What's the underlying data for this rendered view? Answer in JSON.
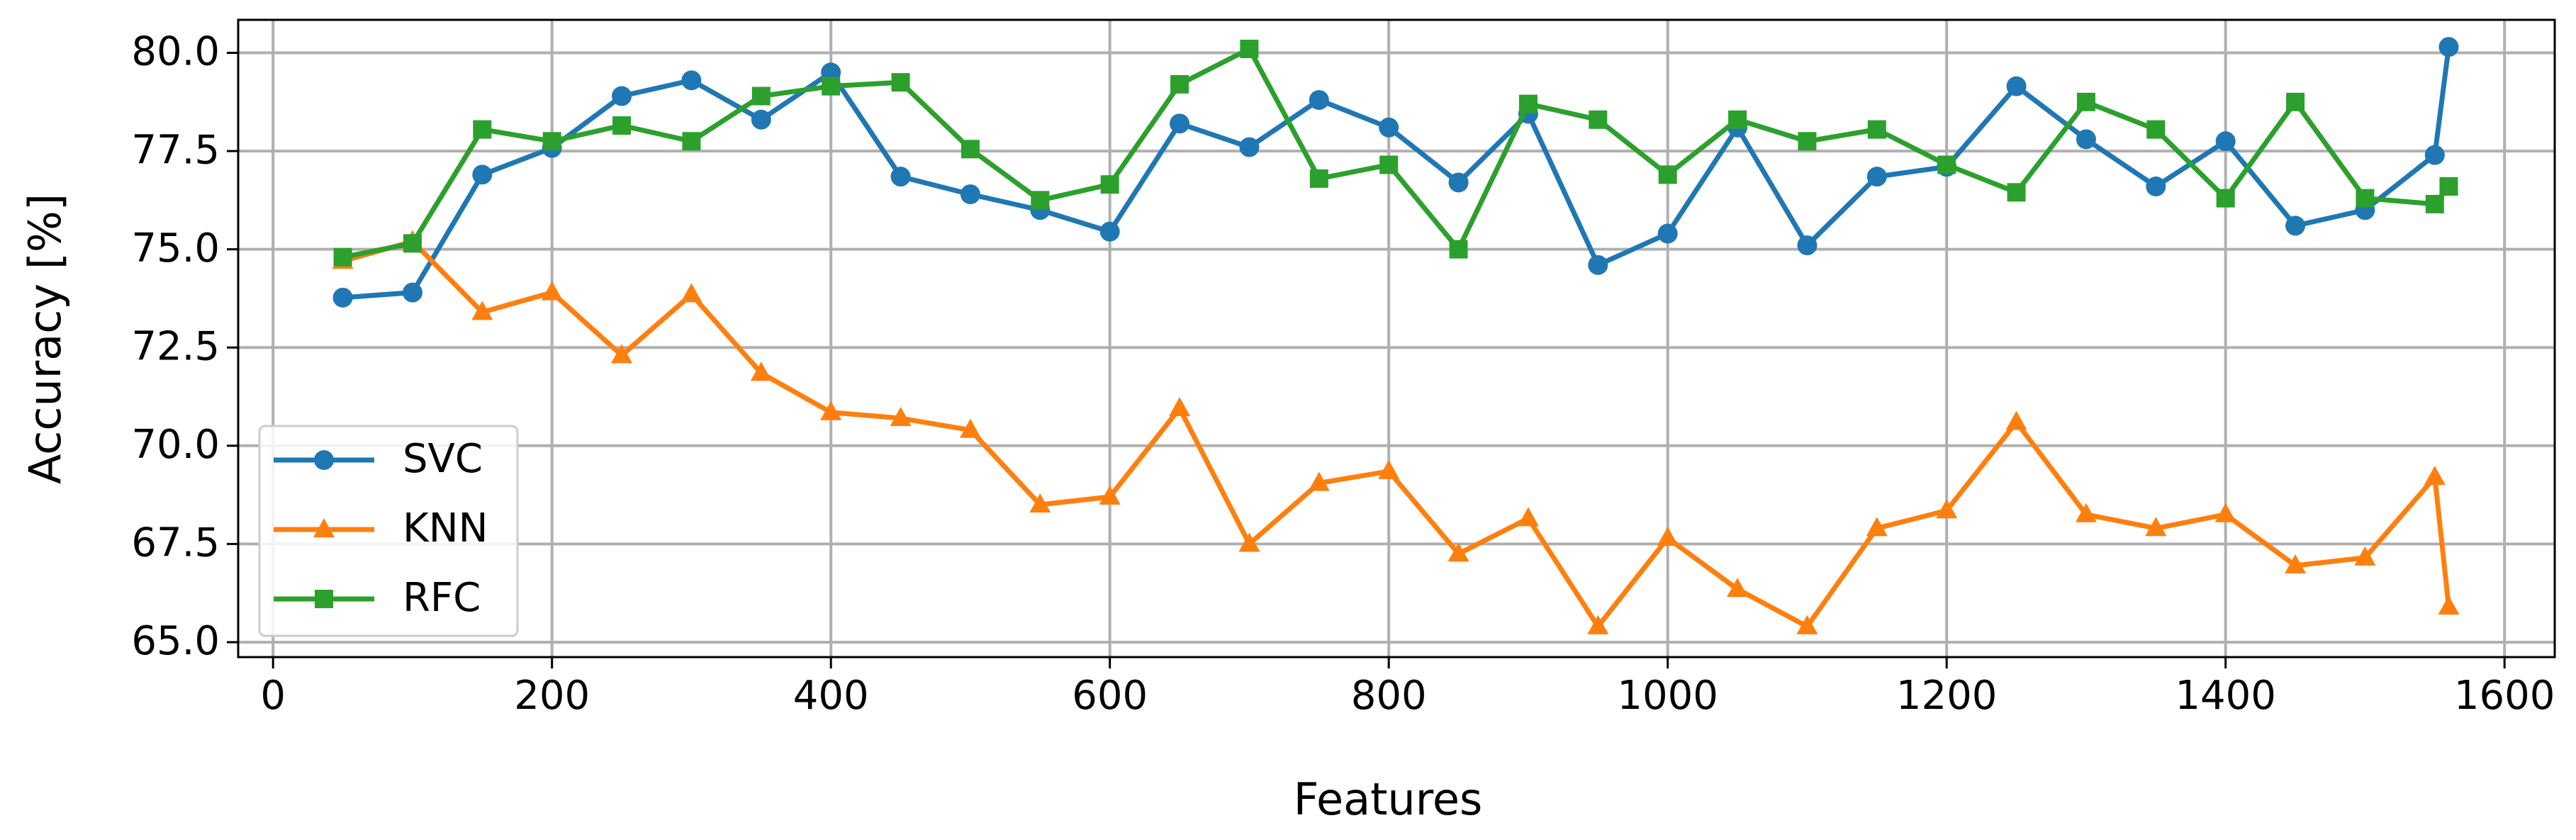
{
  "chart_data": {
    "type": "line",
    "x_label": "Features",
    "y_label": "Accuracy [%]",
    "x": [
      50,
      100,
      150,
      200,
      250,
      300,
      350,
      400,
      450,
      500,
      550,
      600,
      650,
      700,
      750,
      800,
      850,
      900,
      950,
      1000,
      1050,
      1100,
      1150,
      1200,
      1250,
      1300,
      1350,
      1400,
      1450,
      1500,
      1550,
      1560
    ],
    "series": [
      {
        "name": "SVC",
        "color": "#1f77b4",
        "marker": "circle",
        "values": [
          73.77,
          73.9,
          76.9,
          77.58,
          78.9,
          79.3,
          78.3,
          79.5,
          76.85,
          76.4,
          76.0,
          75.45,
          78.2,
          77.6,
          78.8,
          78.1,
          76.7,
          78.45,
          74.6,
          75.4,
          78.1,
          75.1,
          76.85,
          77.1,
          79.15,
          77.8,
          76.6,
          77.75,
          75.6,
          76.0,
          77.4,
          80.15
        ]
      },
      {
        "name": "KNN",
        "color": "#ff7f0e",
        "marker": "triangle",
        "values": [
          74.7,
          75.2,
          73.4,
          73.9,
          72.3,
          73.85,
          71.85,
          70.85,
          70.7,
          70.4,
          68.5,
          68.7,
          70.95,
          67.5,
          69.05,
          69.35,
          67.25,
          68.15,
          65.4,
          67.65,
          66.35,
          65.4,
          67.9,
          68.35,
          70.6,
          68.25,
          67.9,
          68.25,
          66.95,
          67.15,
          69.2,
          65.9
        ]
      },
      {
        "name": "RFC",
        "color": "#2ca02c",
        "marker": "square",
        "values": [
          74.8,
          75.15,
          78.05,
          77.75,
          78.15,
          77.75,
          78.9,
          79.15,
          79.25,
          77.55,
          76.25,
          76.65,
          79.2,
          80.1,
          76.8,
          77.15,
          75.0,
          78.7,
          78.3,
          76.9,
          78.3,
          77.75,
          78.05,
          77.15,
          76.45,
          78.75,
          78.05,
          76.3,
          78.75,
          76.3,
          76.15,
          76.6
        ]
      }
    ],
    "xlim": [
      -25,
      1636
    ],
    "ylim": [
      64.62,
      80.84
    ],
    "xticks": [
      0,
      200,
      400,
      600,
      800,
      1000,
      1200,
      1400,
      1600
    ],
    "yticks": [
      {
        "value": 65,
        "label": "65.0"
      },
      67.5,
      {
        "value": 70,
        "label": "70.0"
      },
      72.5,
      {
        "value": 75,
        "label": "75.0"
      },
      77.5,
      {
        "value": 80,
        "label": "80.0"
      }
    ],
    "grid": true,
    "legend": "lower left"
  }
}
